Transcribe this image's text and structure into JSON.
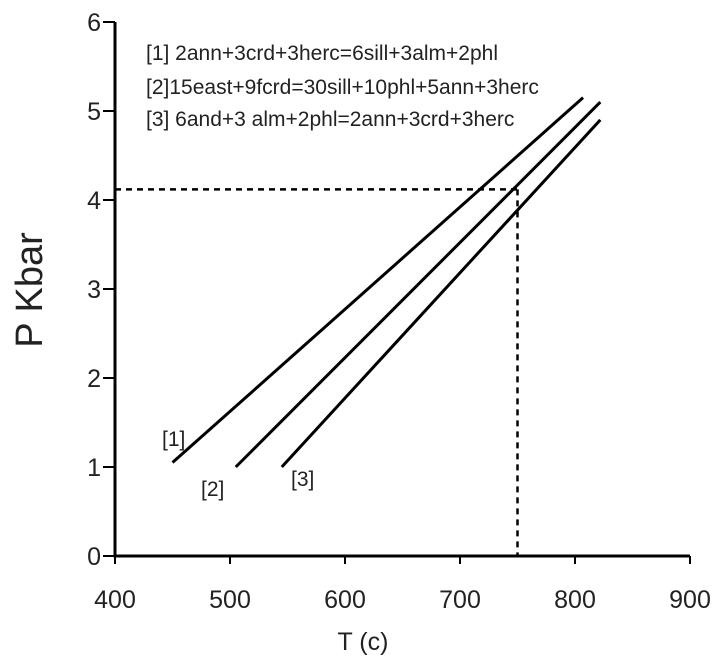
{
  "chart_data": {
    "type": "line",
    "title": "",
    "xlabel": "T (c)",
    "ylabel": "P Kbar",
    "xlim": [
      400,
      900
    ],
    "ylim": [
      0,
      6
    ],
    "x_ticks": [
      400,
      500,
      600,
      700,
      800,
      900
    ],
    "y_ticks": [
      0,
      1,
      2,
      3,
      4,
      5,
      6
    ],
    "grid": false,
    "legend_position": "top-left",
    "line_color": "#000000",
    "legend": [
      "[1] 2ann+3crd+3herc=6sill+3alm+2phl",
      "[2]15east+9fcrd=30sill+10phl+5ann+3herc",
      "[3] 6and+3 alm+2phl=2ann+3crd+3herc"
    ],
    "series": [
      {
        "name": "[1]",
        "x": [
          450,
          807
        ],
        "y": [
          1.05,
          5.15
        ]
      },
      {
        "name": "[2]",
        "x": [
          505,
          822
        ],
        "y": [
          1.0,
          5.1
        ]
      },
      {
        "name": "[3]",
        "x": [
          545,
          822
        ],
        "y": [
          1.0,
          4.9
        ]
      }
    ],
    "reference_lines": {
      "x": 750,
      "y": 4.12
    }
  }
}
